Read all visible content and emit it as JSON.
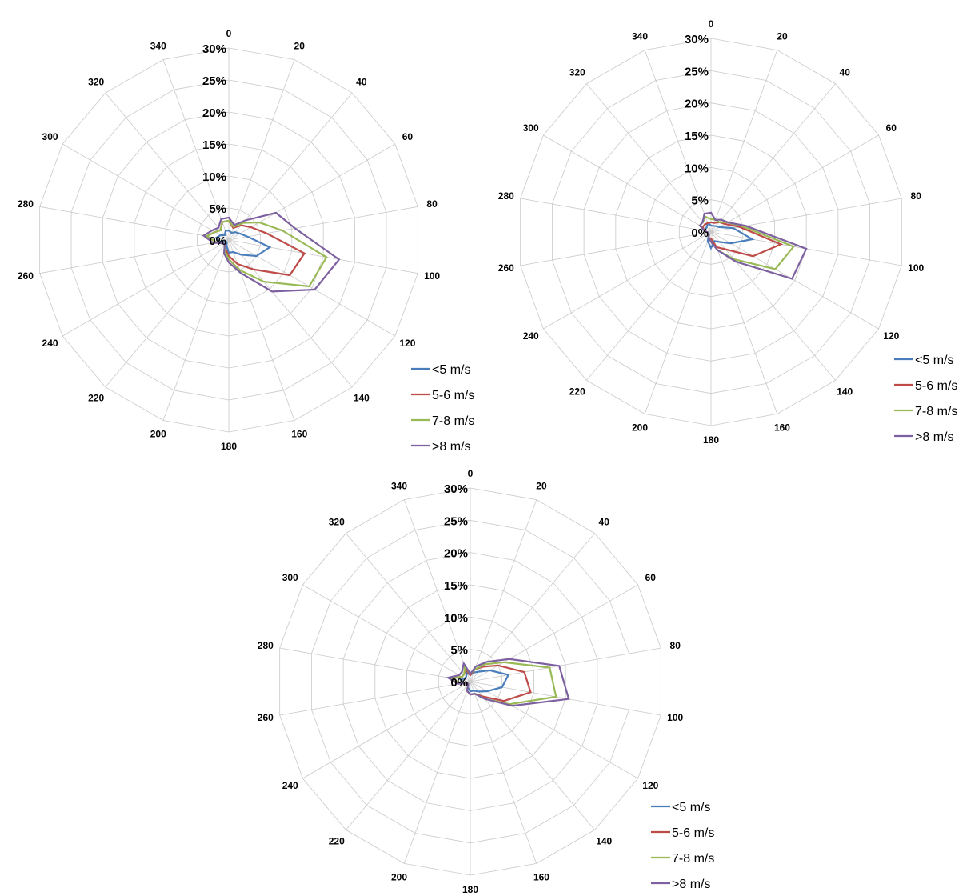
{
  "chart_data": [
    {
      "type": "radar",
      "directions": [
        "0",
        "20",
        "40",
        "60",
        "80",
        "100",
        "120",
        "140",
        "160",
        "180",
        "200",
        "220",
        "240",
        "260",
        "280",
        "300",
        "320",
        "340"
      ],
      "rlim": [
        0,
        30
      ],
      "tick_labels": [
        "0%",
        "5%",
        "10%",
        "15%",
        "20%",
        "25%",
        "30%"
      ],
      "legend_placement": "bottom-right",
      "grid": true,
      "series": [
        {
          "name": "<5 m/s",
          "color": "#4a7ebb",
          "values": [
            1.5,
            1.2,
            1.6,
            2,
            3,
            6.5,
            5,
            3,
            2,
            2,
            1,
            0.5,
            0.5,
            1.5,
            2,
            1.5,
            1,
            1.5
          ]
        },
        {
          "name": "5-6 m/s",
          "color": "#be4b48",
          "values": [
            3,
            2,
            3,
            4,
            6,
            12,
            11,
            6,
            4,
            2.5,
            1.5,
            1,
            1,
            2,
            3.5,
            2.5,
            2,
            3
          ]
        },
        {
          "name": "7-8 m/s",
          "color": "#98b954",
          "values": [
            3,
            2.2,
            3.5,
            5.5,
            8.5,
            15.5,
            14.5,
            8.5,
            5,
            3,
            1.8,
            1,
            1,
            2,
            3.5,
            2.5,
            2,
            3
          ]
        },
        {
          "name": ">8 m/s",
          "color": "#7d60a0",
          "values": [
            3.5,
            2.5,
            4,
            8.5,
            10.5,
            17.5,
            15.5,
            10.5,
            5.5,
            3.5,
            2.2,
            1,
            1,
            2.5,
            4,
            3,
            2.5,
            3.5
          ]
        }
      ]
    },
    {
      "type": "radar",
      "directions": [
        "0",
        "20",
        "40",
        "60",
        "80",
        "100",
        "120",
        "140",
        "160",
        "180",
        "200",
        "220",
        "240",
        "260",
        "280",
        "300",
        "320",
        "340"
      ],
      "rlim": [
        0,
        30
      ],
      "tick_labels": [
        "0%",
        "5%",
        "10%",
        "15%",
        "20%",
        "25%",
        "30%"
      ],
      "legend_placement": "bottom-right",
      "grid": true,
      "series": [
        {
          "name": "<5 m/s",
          "color": "#4a7ebb",
          "values": [
            1,
            1,
            1.2,
            1.5,
            3.5,
            6.5,
            3.5,
            2,
            1.5,
            2.5,
            1.5,
            0.5,
            0.5,
            0.5,
            1,
            1,
            1,
            1.5
          ]
        },
        {
          "name": "5-6 m/s",
          "color": "#be4b48",
          "values": [
            1.5,
            1.5,
            2,
            2.5,
            4.5,
            11,
            7.5,
            3.5,
            2.5,
            1,
            1,
            0.5,
            0.5,
            0.5,
            1,
            1.5,
            1.5,
            1.5
          ]
        },
        {
          "name": "7-8 m/s",
          "color": "#98b954",
          "values": [
            2,
            2,
            2,
            3,
            5,
            13,
            11.5,
            5.5,
            3,
            1.5,
            1,
            0.5,
            0.5,
            0.5,
            1,
            2,
            2,
            2.5
          ]
        },
        {
          "name": ">8 m/s",
          "color": "#7d60a0",
          "values": [
            3,
            2,
            2.5,
            3,
            5.5,
            15,
            14.5,
            6,
            3,
            1.5,
            1,
            0.5,
            0.5,
            0.5,
            1,
            2,
            2,
            3
          ]
        }
      ]
    },
    {
      "type": "radar",
      "directions": [
        "0",
        "20",
        "40",
        "60",
        "80",
        "100",
        "120",
        "140",
        "160",
        "180",
        "200",
        "220",
        "240",
        "260",
        "280",
        "300",
        "320",
        "340"
      ],
      "rlim": [
        0,
        30
      ],
      "tick_labels": [
        "0%",
        "5%",
        "10%",
        "15%",
        "20%",
        "25%",
        "30%"
      ],
      "legend_placement": "bottom-right",
      "grid": true,
      "series": [
        {
          "name": "<5 m/s",
          "color": "#4a7ebb",
          "values": [
            1,
            1.5,
            2,
            3.5,
            6,
            5,
            3,
            2,
            1.5,
            1.5,
            1,
            0.5,
            0.5,
            1,
            1.5,
            1,
            1,
            1.5
          ]
        },
        {
          "name": "5-6 m/s",
          "color": "#be4b48",
          "values": [
            1,
            2,
            3,
            5,
            8.5,
            9.5,
            6,
            3,
            2,
            2,
            1.5,
            0.5,
            0.5,
            1.5,
            3,
            1.5,
            1.5,
            2
          ]
        },
        {
          "name": "7-8 m/s",
          "color": "#98b954",
          "values": [
            1.2,
            2,
            3.5,
            6,
            12.5,
            13.5,
            7,
            3.5,
            2,
            2,
            1.5,
            0.5,
            0.5,
            1.5,
            3,
            1.5,
            1.5,
            2.5
          ]
        },
        {
          "name": ">8 m/s",
          "color": "#7d60a0",
          "values": [
            1.2,
            2.5,
            4,
            7,
            14,
            15.5,
            7.5,
            3.5,
            2,
            2,
            1.5,
            0.5,
            0.5,
            2,
            3.5,
            2,
            2,
            3
          ]
        }
      ]
    }
  ]
}
